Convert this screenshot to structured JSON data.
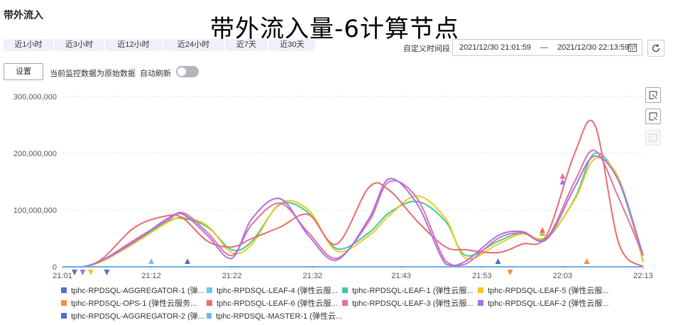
{
  "panel_title": "带外流入",
  "big_title": "带外流入量-6计算节点",
  "time_tabs": [
    {
      "label": "近1小时",
      "name": "tab-1h"
    },
    {
      "label": "近3小时",
      "name": "tab-3h"
    },
    {
      "label": "近12小时",
      "name": "tab-12h"
    },
    {
      "label": "近24小时",
      "name": "tab-24h"
    },
    {
      "label": "近7天",
      "name": "tab-7d"
    },
    {
      "label": "近30天",
      "name": "tab-30d"
    }
  ],
  "custom_range": {
    "label": "自定义时间段",
    "start": "2021/12/30 21:01:59",
    "separator": "—",
    "end": "2021/12/30 22:13:59",
    "calendar_icon": "calendar-icon"
  },
  "refresh_icon": "refresh-icon",
  "settings_label": "设置",
  "raw_data_note": "当前监控数据为原始数据",
  "auto_refresh": {
    "label": "自动刷新",
    "enabled": false
  },
  "side_tools": [
    "zoom-in-icon",
    "zoom-reset-icon",
    "zoom-disabled-icon"
  ],
  "chart_data": {
    "type": "line",
    "x_ticks": [
      "21:01",
      "21:12",
      "21:22",
      "21:32",
      "21:43",
      "21:53",
      "22:03",
      "22:13"
    ],
    "y_ticks": [
      "0",
      "100,000,000",
      "200,000,000",
      "300,000,000"
    ],
    "ylim": [
      0,
      300000000
    ],
    "grid": "dashed horizontal",
    "legend_placement": "bottom",
    "series": [
      {
        "name": "tphc-RPDSQL-AGGREGATOR-1 (弹...",
        "color": "#5470c6",
        "x": [
          0,
          72
        ],
        "y": [
          0,
          0
        ],
        "markers": [
          [
            15.5,
            "up"
          ],
          [
            1.5,
            "down"
          ]
        ]
      },
      {
        "name": "tphc-RPDSQL-LEAF-4 (弹性云服...",
        "color": "#73c0ff",
        "x": [
          0,
          72
        ],
        "y": [
          0,
          0
        ],
        "markers": [
          [
            11,
            "up"
          ]
        ]
      },
      {
        "name": "tphc-RPDSQL-LEAF-1 (弹性云服...",
        "color": "#3ec9a0",
        "x": [
          0,
          2.5,
          5,
          9,
          13,
          15,
          18,
          21,
          23.5,
          27,
          30.5,
          34,
          38,
          40.5,
          44,
          47.5,
          50,
          54,
          57,
          60,
          63.5,
          66,
          69,
          72
        ],
        "y": [
          0,
          0,
          12000000,
          45000000,
          80000000,
          85000000,
          70000000,
          30000000,
          45000000,
          110000000,
          95000000,
          32000000,
          60000000,
          95000000,
          115000000,
          80000000,
          20000000,
          45000000,
          60000000,
          50000000,
          120000000,
          200000000,
          150000000,
          10000000
        ],
        "markers": [
          [
            59.5,
            "up"
          ]
        ]
      },
      {
        "name": "tphc-RPDSQL-LEAF-5 (弹性云服...",
        "color": "#f2c81e",
        "x": [
          0,
          2.5,
          5,
          9,
          13,
          15,
          18,
          21,
          23.5,
          27,
          30.5,
          34,
          38,
          40.5,
          44,
          47.5,
          50,
          54,
          57,
          60,
          63.5,
          66,
          69,
          72
        ],
        "y": [
          0,
          0,
          10000000,
          42000000,
          78000000,
          87000000,
          72000000,
          25000000,
          40000000,
          112000000,
          100000000,
          28000000,
          55000000,
          90000000,
          125000000,
          85000000,
          15000000,
          40000000,
          58000000,
          52000000,
          118000000,
          190000000,
          155000000,
          8000000
        ],
        "markers": [
          [
            3.5,
            "down"
          ],
          [
            59.5,
            "up"
          ]
        ]
      },
      {
        "name": "tphc-RPDSQL-OPS-1 (弹性云服务...",
        "color": "#fb8c3c",
        "x": [
          0,
          72
        ],
        "y": [
          0,
          0
        ],
        "markers": [
          [
            55.5,
            "down"
          ],
          [
            65,
            "up"
          ]
        ]
      },
      {
        "name": "tphc-RPDSQL-LEAF-6 (弹性云服...",
        "color": "#ee6a6a",
        "x": [
          0,
          2.5,
          5,
          9,
          13,
          15,
          18,
          21,
          23.5,
          27,
          30.5,
          34,
          38,
          40.5,
          44,
          47.5,
          50,
          54,
          57,
          60,
          63.5,
          66,
          69,
          72
        ],
        "y": [
          0,
          0,
          15000000,
          70000000,
          90000000,
          85000000,
          45000000,
          35000000,
          50000000,
          70000000,
          92000000,
          40000000,
          140000000,
          135000000,
          80000000,
          35000000,
          30000000,
          25000000,
          40000000,
          55000000,
          200000000,
          250000000,
          40000000,
          0
        ],
        "markers": [
          [
            59.5,
            "up-high"
          ]
        ]
      },
      {
        "name": "tphc-RPDSQL-LEAF-3 (弹性云服...",
        "color": "#e36fa0",
        "x": [
          0,
          2.5,
          5,
          9,
          13,
          15,
          18,
          21,
          23.5,
          27,
          30.5,
          34,
          38,
          40.5,
          44,
          47.5,
          50,
          54,
          57,
          60,
          63.5,
          66,
          69,
          72
        ],
        "y": [
          0,
          0,
          12000000,
          48000000,
          82000000,
          95000000,
          60000000,
          20000000,
          75000000,
          112000000,
          60000000,
          15000000,
          80000000,
          150000000,
          120000000,
          10000000,
          5000000,
          50000000,
          60000000,
          50000000,
          150000000,
          205000000,
          120000000,
          20000000
        ],
        "markers": [
          [
            62,
            "up"
          ]
        ]
      },
      {
        "name": "tphc-RPDSQL-LEAF-2 (弹性云服...",
        "color": "#a871e8",
        "x": [
          0,
          2.5,
          5,
          9,
          13,
          15,
          18,
          21,
          23.5,
          27,
          30.5,
          34,
          38,
          40.5,
          44,
          47.5,
          50,
          54,
          57,
          60,
          63.5,
          66,
          69,
          72
        ],
        "y": [
          0,
          0,
          12000000,
          45000000,
          85000000,
          92000000,
          55000000,
          15000000,
          85000000,
          120000000,
          55000000,
          12000000,
          85000000,
          155000000,
          110000000,
          5000000,
          10000000,
          55000000,
          62000000,
          48000000,
          140000000,
          195000000,
          150000000,
          20000000
        ],
        "markers": [
          [
            2.5,
            "down"
          ],
          [
            62,
            "up"
          ]
        ]
      },
      {
        "name": "tphc-RPDSQL-AGGREGATOR-2 (弹...",
        "color": "#4a6fd6",
        "x": [
          0,
          72
        ],
        "y": [
          0,
          0
        ],
        "markers": [
          [
            5.5,
            "down"
          ],
          [
            54,
            "up"
          ]
        ]
      },
      {
        "name": "tphc-RPDSQL-MASTER-1 (弹性云...",
        "color": "#6cb8f0",
        "x": [
          0,
          72
        ],
        "y": [
          0,
          0
        ],
        "markers": []
      }
    ]
  }
}
